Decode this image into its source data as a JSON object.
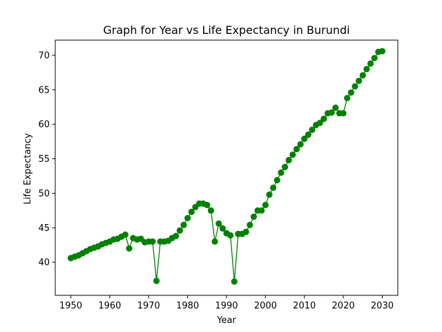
{
  "chart_data": {
    "type": "line",
    "title": "Graph for Year vs Life Expectancy in Burundi",
    "xlabel": "Year",
    "ylabel": "Life Expectancy",
    "xlim": [
      1946,
      2034
    ],
    "ylim": [
      35.2,
      72.2
    ],
    "x_ticks": [
      1950,
      1960,
      1970,
      1980,
      1990,
      2000,
      2010,
      2020,
      2030
    ],
    "y_ticks": [
      40,
      45,
      50,
      55,
      60,
      65,
      70
    ],
    "grid": false,
    "legend": "none",
    "series": [
      {
        "color": "#008000",
        "marker": "circle",
        "x": [
          1950,
          1951,
          1952,
          1953,
          1954,
          1955,
          1956,
          1957,
          1958,
          1959,
          1960,
          1961,
          1962,
          1963,
          1964,
          1965,
          1966,
          1967,
          1968,
          1969,
          1970,
          1971,
          1972,
          1973,
          1974,
          1975,
          1976,
          1977,
          1978,
          1979,
          1980,
          1981,
          1982,
          1983,
          1984,
          1985,
          1986,
          1987,
          1988,
          1989,
          1990,
          1991,
          1992,
          1993,
          1994,
          1995,
          1996,
          1997,
          1998,
          1999,
          2000,
          2001,
          2002,
          2003,
          2004,
          2005,
          2006,
          2007,
          2008,
          2009,
          2010,
          2011,
          2012,
          2013,
          2014,
          2015,
          2016,
          2017,
          2018,
          2019,
          2020,
          2021,
          2022,
          2023,
          2024,
          2025,
          2026,
          2027,
          2028,
          2029,
          2030
        ],
        "y": [
          40.6,
          40.8,
          41.0,
          41.3,
          41.6,
          41.9,
          42.1,
          42.3,
          42.6,
          42.8,
          43.0,
          43.3,
          43.4,
          43.7,
          44.0,
          42.0,
          43.5,
          43.3,
          43.4,
          42.9,
          43.0,
          43.0,
          37.3,
          43.0,
          43.0,
          43.1,
          43.5,
          43.8,
          44.6,
          45.4,
          46.4,
          47.3,
          48.0,
          48.5,
          48.5,
          48.3,
          47.5,
          43.0,
          45.6,
          44.9,
          44.2,
          43.9,
          37.2,
          44.1,
          44.1,
          44.4,
          45.4,
          46.6,
          47.5,
          47.5,
          48.3,
          49.8,
          50.8,
          51.9,
          53.0,
          53.8,
          54.8,
          55.6,
          56.4,
          57.1,
          57.9,
          58.5,
          59.2,
          59.9,
          60.2,
          60.8,
          61.6,
          61.7,
          62.4,
          61.6,
          61.6,
          63.8,
          64.6,
          65.5,
          66.3,
          67.1,
          68.0,
          68.8,
          69.6,
          70.5,
          70.6
        ]
      }
    ]
  }
}
